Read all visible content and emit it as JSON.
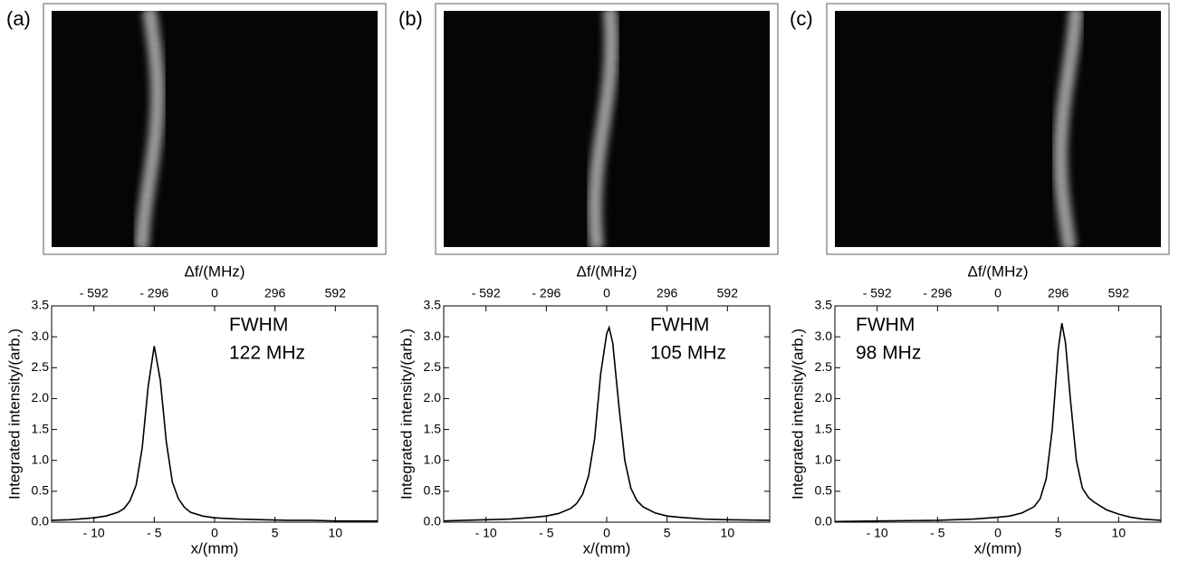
{
  "chart_data": [
    {
      "type": "line",
      "panel_label": "(a)",
      "x_label": "x/(mm)",
      "y_label": "Integrated intensity/(arb.)",
      "x2_label": "Δf/(MHz)",
      "annotation": [
        "FWHM",
        "122 MHz"
      ],
      "color": "#000000",
      "xlim": [
        -13.5,
        13.5
      ],
      "x2lim": [
        -799.2,
        799.2
      ],
      "ylim": [
        0,
        3.5
      ],
      "xticks": [
        {
          "value": -10,
          "label": "- 10"
        },
        {
          "value": -5,
          "label": "- 5"
        },
        0,
        5,
        10
      ],
      "x2ticks": [
        {
          "value": -592,
          "label": "- 592"
        },
        {
          "value": -296,
          "label": "- 296"
        },
        0,
        296,
        592
      ],
      "yticks": [
        {
          "value": 0,
          "label": "0.0"
        },
        0.5,
        {
          "value": 1,
          "label": "1.0"
        },
        1.5,
        {
          "value": 2,
          "label": "2.0"
        },
        2.5,
        {
          "value": 3,
          "label": "3.0"
        },
        3.5
      ],
      "x": [
        -13.5,
        -12,
        -10,
        -9,
        -8,
        -7.5,
        -7,
        -6.5,
        -6,
        -5.5,
        -5,
        -4.5,
        -4,
        -3.5,
        -3,
        -2.5,
        -2,
        -1,
        0,
        2,
        4,
        6,
        8,
        10,
        13.5
      ],
      "values": [
        0.03,
        0.04,
        0.07,
        0.1,
        0.16,
        0.22,
        0.35,
        0.6,
        1.2,
        2.2,
        2.85,
        2.3,
        1.3,
        0.65,
        0.38,
        0.24,
        0.16,
        0.1,
        0.07,
        0.05,
        0.04,
        0.03,
        0.03,
        0.02,
        0.02
      ]
    },
    {
      "type": "line",
      "panel_label": "(b)",
      "x_label": "x/(mm)",
      "y_label": "Integrated intensity/(arb.)",
      "x2_label": "Δf/(MHz)",
      "annotation": [
        "FWHM",
        "105 MHz"
      ],
      "color": "#000000",
      "xlim": [
        -13.5,
        13.5
      ],
      "x2lim": [
        -799.2,
        799.2
      ],
      "ylim": [
        0,
        3.5
      ],
      "xticks": [
        {
          "value": -10,
          "label": "- 10"
        },
        {
          "value": -5,
          "label": "- 5"
        },
        0,
        5,
        10
      ],
      "x2ticks": [
        {
          "value": -592,
          "label": "- 592"
        },
        {
          "value": -296,
          "label": "- 296"
        },
        0,
        296,
        592
      ],
      "yticks": [
        {
          "value": 0,
          "label": "0.0"
        },
        0.5,
        {
          "value": 1,
          "label": "1.0"
        },
        1.5,
        {
          "value": 2,
          "label": "2.0"
        },
        2.5,
        {
          "value": 3,
          "label": "3.0"
        },
        3.5
      ],
      "x": [
        -13.5,
        -10,
        -8,
        -6,
        -5,
        -4,
        -3,
        -2.5,
        -2,
        -1.5,
        -1,
        -0.5,
        0,
        0.2,
        0.5,
        1,
        1.5,
        2,
        2.5,
        3,
        4,
        5,
        6,
        8,
        10,
        13.5
      ],
      "values": [
        0.02,
        0.04,
        0.05,
        0.08,
        0.1,
        0.14,
        0.22,
        0.3,
        0.45,
        0.75,
        1.35,
        2.4,
        3.05,
        3.15,
        2.9,
        1.9,
        1.0,
        0.55,
        0.35,
        0.25,
        0.15,
        0.1,
        0.08,
        0.05,
        0.04,
        0.03
      ]
    },
    {
      "type": "line",
      "panel_label": "(c)",
      "x_label": "x/(mm)",
      "y_label": "Integrated intensity/(arb.)",
      "x2_label": "Δf/(MHz)",
      "annotation": [
        "FWHM",
        "98 MHz"
      ],
      "color": "#000000",
      "xlim": [
        -13.5,
        13.5
      ],
      "x2lim": [
        -799.2,
        799.2
      ],
      "ylim": [
        0,
        3.5
      ],
      "xticks": [
        {
          "value": -10,
          "label": "- 10"
        },
        {
          "value": -5,
          "label": "- 5"
        },
        0,
        5,
        10
      ],
      "x2ticks": [
        {
          "value": -592,
          "label": "- 592"
        },
        {
          "value": -296,
          "label": "- 296"
        },
        0,
        296,
        592
      ],
      "yticks": [
        {
          "value": 0,
          "label": "0.0"
        },
        0.5,
        {
          "value": 1,
          "label": "1.0"
        },
        1.5,
        {
          "value": 2,
          "label": "2.0"
        },
        2.5,
        {
          "value": 3,
          "label": "3.0"
        },
        3.5
      ],
      "x": [
        -13.5,
        -10,
        -5,
        -2,
        0,
        1,
        2,
        3,
        3.5,
        4,
        4.5,
        5,
        5.3,
        5.6,
        6,
        6.5,
        7,
        7.5,
        8,
        9,
        10,
        11,
        12,
        13.5
      ],
      "values": [
        0.01,
        0.02,
        0.03,
        0.05,
        0.08,
        0.1,
        0.15,
        0.25,
        0.38,
        0.7,
        1.5,
        2.8,
        3.22,
        2.9,
        2.0,
        1.0,
        0.55,
        0.4,
        0.32,
        0.2,
        0.13,
        0.08,
        0.05,
        0.03
      ]
    }
  ]
}
